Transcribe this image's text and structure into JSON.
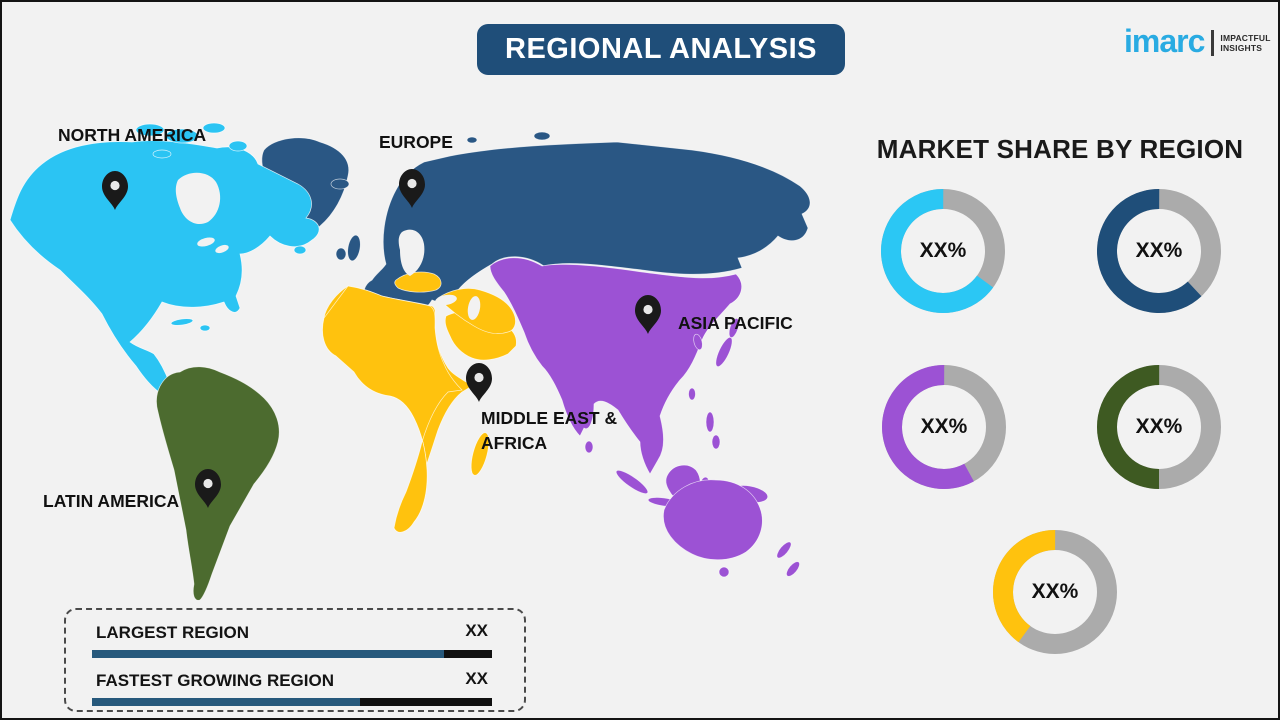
{
  "frame": {
    "background": "#F2F2F2",
    "border_color": "#141414"
  },
  "header": {
    "title": "REGIONAL ANALYSIS",
    "banner_color": "#1F4E79",
    "text_color": "#FFFFFF"
  },
  "logo": {
    "brand": "imarc",
    "tagline_line1": "IMPACTFUL",
    "tagline_line2": "INSIGHTS",
    "brand_color": "#29ABE2",
    "tagline_color": "#2B2B2B"
  },
  "map": {
    "pin_color": "#1A1A1A",
    "regions": [
      {
        "id": "north-america",
        "label": "NORTH AMERICA",
        "color": "#2BC4F3"
      },
      {
        "id": "europe",
        "label": "EUROPE",
        "color": "#2A5784"
      },
      {
        "id": "asia-pacific",
        "label": "ASIA PACIFIC",
        "color": "#9C52D4"
      },
      {
        "id": "middle-east-africa",
        "label": "MIDDLE EAST & AFRICA",
        "label_line1": "MIDDLE EAST &",
        "label_line2": "AFRICA",
        "color": "#FFC20E"
      },
      {
        "id": "latin-america",
        "label": "LATIN AMERICA",
        "color": "#4C6B2F"
      }
    ]
  },
  "market_share": {
    "heading": "MARKET SHARE BY REGION",
    "track_color": "#ABABAB",
    "donuts": [
      {
        "region": "North America",
        "value_label": "XX%",
        "color": "#2BC7F4",
        "fill_pct": 65
      },
      {
        "region": "Europe",
        "value_label": "XX%",
        "color": "#1F4E79",
        "fill_pct": 62
      },
      {
        "region": "Asia Pacific",
        "value_label": "XX%",
        "color": "#9C52D4",
        "fill_pct": 58
      },
      {
        "region": "Latin America",
        "value_label": "XX%",
        "color": "#3E5A22",
        "fill_pct": 50
      },
      {
        "region": "Middle East & Africa",
        "value_label": "XX%",
        "color": "#FFC20E",
        "fill_pct": 40
      }
    ]
  },
  "legend": {
    "bar_fill_color": "#27597C",
    "bar_track_color": "#111111",
    "rows": [
      {
        "label": "LARGEST REGION",
        "value": "XX",
        "bar_fill_pct": 88
      },
      {
        "label": "FASTEST GROWING REGION",
        "value": "XX",
        "bar_fill_pct": 67
      }
    ]
  },
  "chart_data": [
    {
      "type": "pie",
      "title": "MARKET SHARE BY REGION",
      "labels": [
        "North America",
        "Europe",
        "Asia Pacific",
        "Latin America",
        "Middle East & Africa"
      ],
      "values": [
        "XX%",
        "XX%",
        "XX%",
        "XX%",
        "XX%"
      ],
      "colors": [
        "#2BC7F4",
        "#1F4E79",
        "#9C52D4",
        "#3E5A22",
        "#FFC20E"
      ],
      "note": "Five donut gauges with placeholder XX% values; visually filled arc fractions approx 0.65, 0.62, 0.58, 0.50, 0.40 (remainder gray #ABABAB)."
    },
    {
      "type": "bar",
      "categories": [
        "LARGEST REGION",
        "FASTEST GROWING REGION"
      ],
      "values": [
        "XX",
        "XX"
      ],
      "note": "Horizontal indicator bars inside dashed box; blue filled fractions approx 0.88 and 0.67 of black track."
    }
  ]
}
